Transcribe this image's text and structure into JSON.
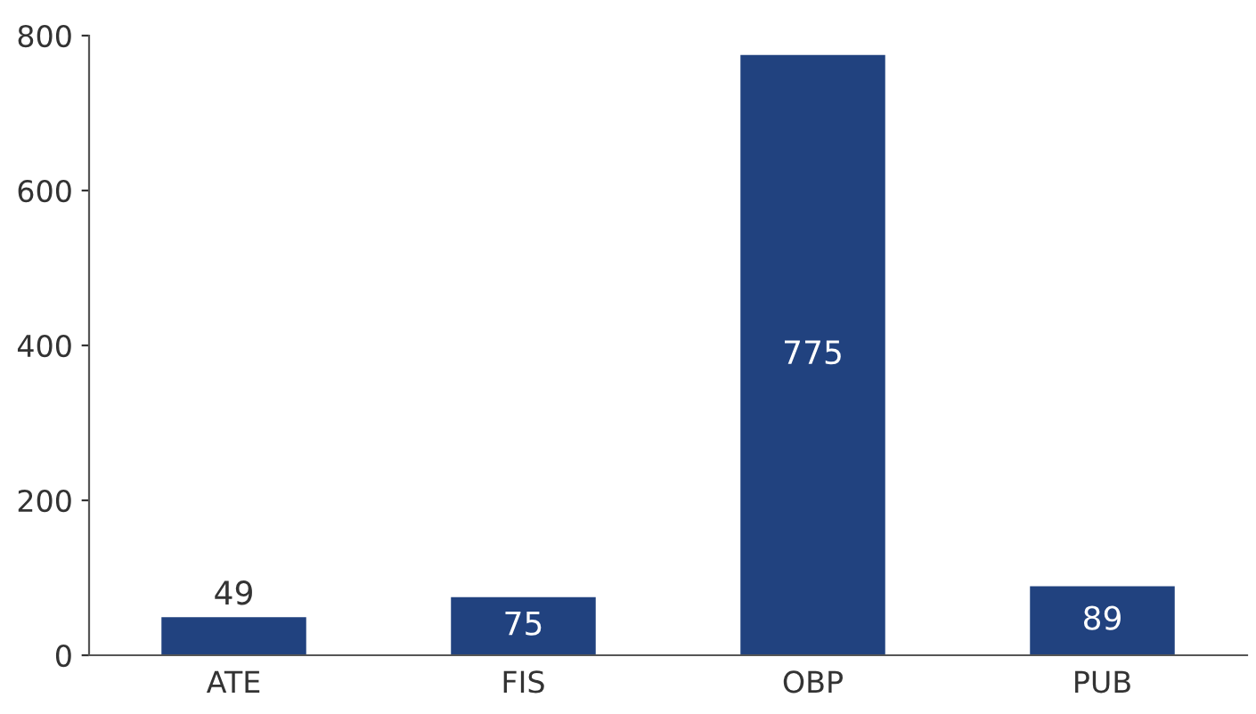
{
  "chart_data": {
    "type": "bar",
    "categories": [
      "ATE",
      "FIS",
      "OBP",
      "PUB"
    ],
    "values": [
      49,
      75,
      775,
      89
    ],
    "color": "#21427f",
    "ylim": [
      0,
      800
    ],
    "yticks": [
      0,
      200,
      400,
      600,
      800
    ],
    "data_labels": true,
    "grid": false,
    "legend": false
  }
}
